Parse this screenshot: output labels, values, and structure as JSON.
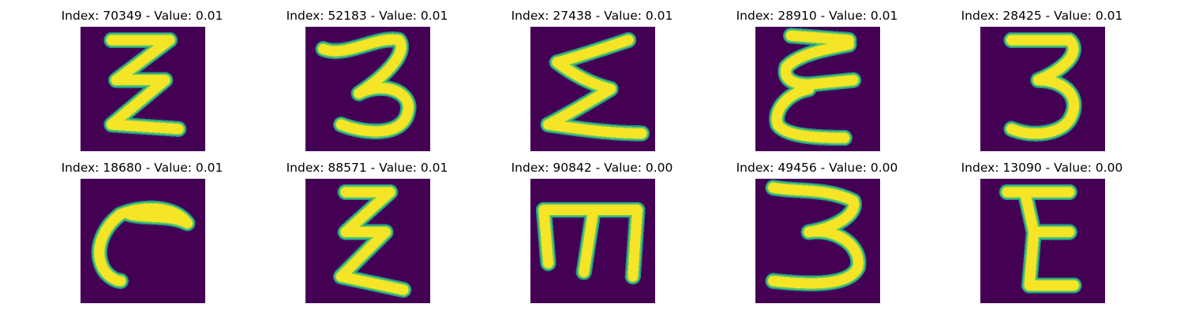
{
  "colors": {
    "background": "#440154",
    "stroke_core": "#f6e526",
    "stroke_edge": "#21918c",
    "stroke_mid": "#5ec962"
  },
  "grid": [
    {
      "title": "Index: 70349 - Value: 0.01",
      "glyph": "epsilon-upright"
    },
    {
      "title": "Index: 52183 - Value: 0.01",
      "glyph": "three"
    },
    {
      "title": "Index: 27438 - Value: 0.01",
      "glyph": "sigma"
    },
    {
      "title": "Index: 28910 - Value: 0.01",
      "glyph": "epsilon-loopy"
    },
    {
      "title": "Index: 28425 - Value: 0.01",
      "glyph": "three-bold"
    },
    {
      "title": "Index: 18680 - Value: 0.01",
      "glyph": "hook"
    },
    {
      "title": "Index: 88571 - Value: 0.01",
      "glyph": "epsilon-bold"
    },
    {
      "title": "Index: 90842 - Value: 0.00",
      "glyph": "m-rotated"
    },
    {
      "title": "Index: 49456 - Value: 0.00",
      "glyph": "three-wide"
    },
    {
      "title": "Index: 13090 - Value: 0.00",
      "glyph": "e-block"
    }
  ]
}
